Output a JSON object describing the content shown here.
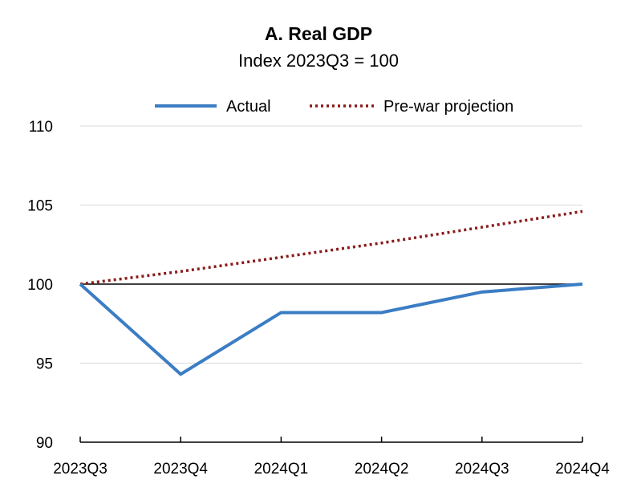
{
  "chart_data": {
    "type": "line",
    "title": "A. Real GDP",
    "subtitle": "Index 2023Q3 = 100",
    "categories": [
      "2023Q3",
      "2023Q4",
      "2024Q1",
      "2024Q2",
      "2024Q3",
      "2024Q4"
    ],
    "series": [
      {
        "name": "Actual",
        "values": [
          100,
          94.3,
          98.2,
          98.2,
          99.5,
          100.0
        ],
        "color": "#3B7DC4",
        "style": "solid"
      },
      {
        "name": "Pre-war projection",
        "values": [
          100,
          100.8,
          101.7,
          102.6,
          103.6,
          104.6
        ],
        "color": "#8B1A1A",
        "style": "dotted"
      }
    ],
    "ylim": [
      90,
      110
    ],
    "yticks": [
      90,
      95,
      100,
      105,
      110
    ],
    "reference_line": 100,
    "grid": "horizontal",
    "legend_position": "top"
  }
}
